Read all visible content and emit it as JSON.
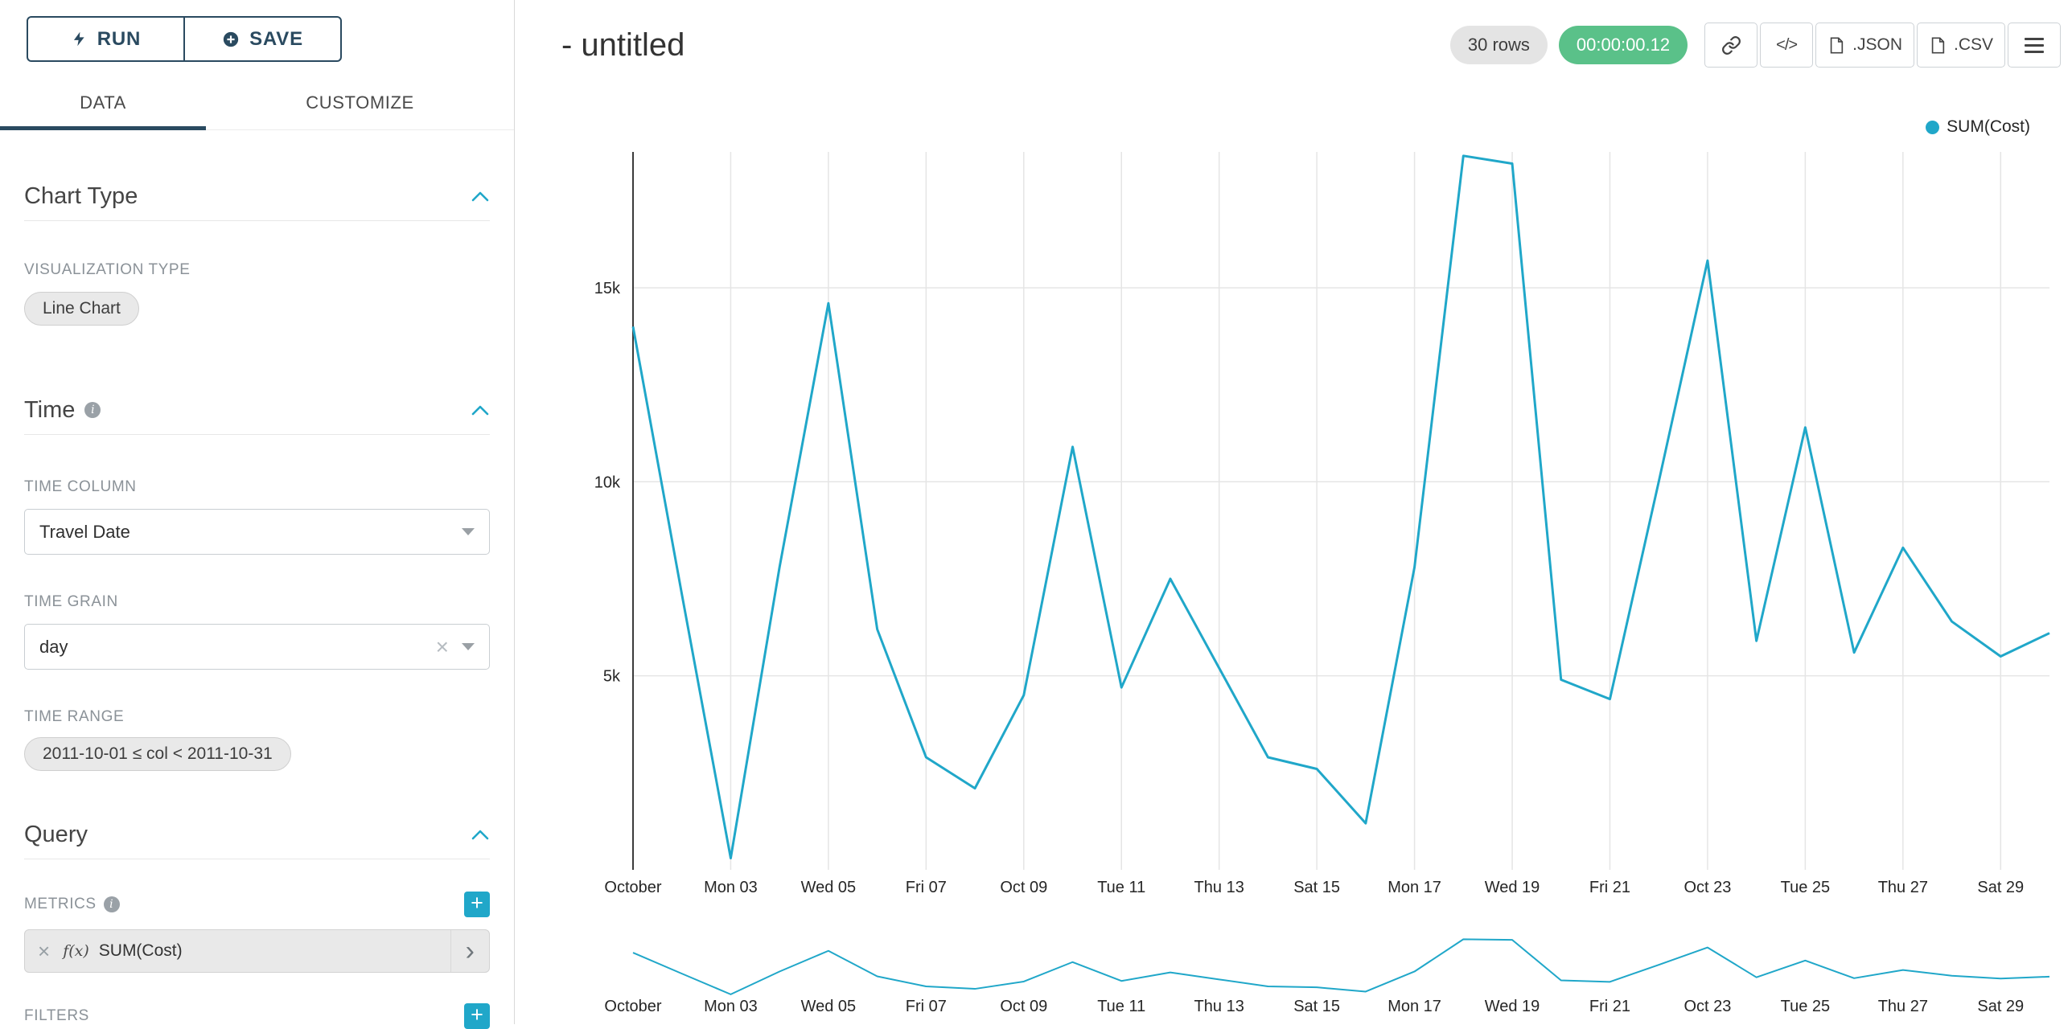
{
  "colors": {
    "accent": "#20A7C9",
    "success": "#5AC189",
    "navy": "#2A4A60"
  },
  "icons": {
    "info_glyph": "i",
    "plus_glyph": "+",
    "clear_glyph": "×",
    "chevron_right_glyph": "›",
    "code_glyph": "</>"
  },
  "sidebar": {
    "run_label": "RUN",
    "save_label": "SAVE",
    "tabs": [
      {
        "label": "DATA",
        "active": true
      },
      {
        "label": "CUSTOMIZE",
        "active": false
      }
    ],
    "chart_type": {
      "title": "Chart Type",
      "viz_label": "VISUALIZATION TYPE",
      "viz_value": "Line Chart"
    },
    "time": {
      "title": "Time",
      "column_label": "TIME COLUMN",
      "column_value": "Travel Date",
      "grain_label": "TIME GRAIN",
      "grain_value": "day",
      "range_label": "TIME RANGE",
      "range_value": "2011-10-01 ≤ col < 2011-10-31"
    },
    "query": {
      "title": "Query",
      "metrics_label": "METRICS",
      "metric_fn": "f(x)",
      "metric_name": "SUM(Cost)",
      "filters_label": "FILTERS"
    }
  },
  "header": {
    "title": "- untitled",
    "rows_badge": "30 rows",
    "timer_badge": "00:00:00.12",
    "json_label": ".JSON",
    "csv_label": ".CSV"
  },
  "legend": {
    "label": "SUM(Cost)"
  },
  "chart_data": {
    "type": "line",
    "title": "- untitled",
    "xlabel": "",
    "ylabel": "",
    "x": [
      "2011-10-01",
      "2011-10-02",
      "2011-10-03",
      "2011-10-04",
      "2011-10-05",
      "2011-10-06",
      "2011-10-07",
      "2011-10-08",
      "2011-10-09",
      "2011-10-10",
      "2011-10-11",
      "2011-10-12",
      "2011-10-13",
      "2011-10-14",
      "2011-10-15",
      "2011-10-16",
      "2011-10-17",
      "2011-10-18",
      "2011-10-19",
      "2011-10-20",
      "2011-10-21",
      "2011-10-22",
      "2011-10-23",
      "2011-10-24",
      "2011-10-25",
      "2011-10-26",
      "2011-10-27",
      "2011-10-28",
      "2011-10-29",
      "2011-10-30"
    ],
    "series": [
      {
        "name": "SUM(Cost)",
        "values": [
          14000,
          7100,
          300,
          7800,
          14600,
          6200,
          2900,
          2100,
          4500,
          10900,
          4700,
          7500,
          5200,
          2900,
          2600,
          1200,
          7800,
          18400,
          18200,
          4900,
          4400,
          10000,
          15700,
          5900,
          11400,
          5600,
          8300,
          6400,
          5500,
          6100
        ]
      }
    ],
    "x_tick_labels": [
      "October",
      "Mon 03",
      "Wed 05",
      "Fri 07",
      "Oct 09",
      "Tue 11",
      "Thu 13",
      "Sat 15",
      "Mon 17",
      "Wed 19",
      "Fri 21",
      "Oct 23",
      "Tue 25",
      "Thu 27",
      "Sat 29"
    ],
    "x_tick_positions": [
      0,
      2,
      4,
      6,
      8,
      10,
      12,
      14,
      16,
      18,
      20,
      22,
      24,
      26,
      28
    ],
    "y_ticks": [
      {
        "value": 5000,
        "label": "5k"
      },
      {
        "value": 10000,
        "label": "10k"
      },
      {
        "value": 15000,
        "label": "15k"
      }
    ],
    "ylim": [
      0,
      18500
    ],
    "grid": true,
    "legend_position": "top-right",
    "color": "#20A7C9",
    "has_brush_chart": true
  }
}
